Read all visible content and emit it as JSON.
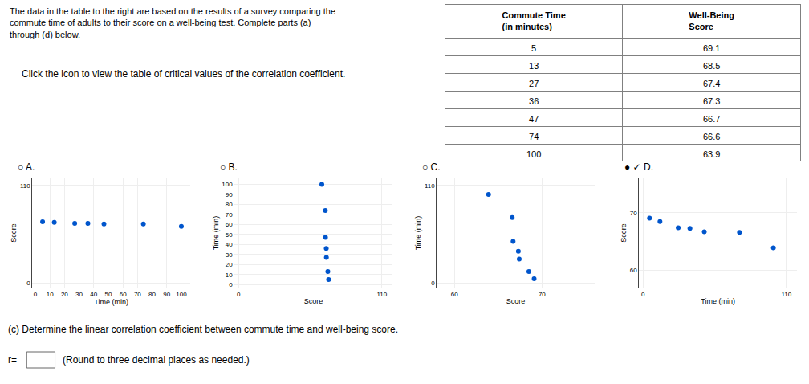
{
  "chart_data": [
    {
      "type": "table",
      "title": "The data in the table to the right are based on the results of a survey comparing the\ncommute time of adults to their score on a well-being test. Complete parts (a)\nthrough (d) below.",
      "series": [
        {
          "name": "Commute Time\n(in minutes)",
          "values": [
            5,
            13,
            27,
            36,
            47,
            74,
            100
          ]
        },
        {
          "name": "Well-Being\nScore",
          "values": [
            69.1,
            68.5,
            67.4,
            67.3,
            66.7,
            66.6,
            63.9
          ]
        }
      ],
      "annotations": [
        "Click the icon to view the table of critical values of the correlation coefficient.",
        "(c) Determine the linear correlation coefficient between commute time and well-being score.",
        "r=",
        "(Round to three decimal places as needed.)"
      ]
    },
    {
      "type": "scatter",
      "title": "○ A.",
      "x": [
        5,
        13,
        27,
        36,
        47,
        74,
        100
      ],
      "values": [
        69.1,
        68.5,
        67.4,
        67.3,
        66.7,
        66.6,
        63.9
      ],
      "xlabel": "Time (min)",
      "ylabel": "Score",
      "xlim": [
        -2,
        106
      ],
      "ylim": [
        -5,
        118
      ],
      "xticks": [
        0,
        10,
        20,
        30,
        40,
        50,
        60,
        70,
        80,
        90,
        100
      ],
      "yticks": [
        0,
        110
      ],
      "grid": true,
      "color": "#0055cc"
    },
    {
      "type": "scatter",
      "title": "○ B.",
      "x": [
        69.1,
        68.5,
        67.4,
        67.3,
        66.7,
        66.6,
        63.9
      ],
      "values": [
        5,
        13,
        27,
        36,
        47,
        74,
        100
      ],
      "xlabel": "Score",
      "ylabel": "Time (min)",
      "xlim": [
        -3,
        118
      ],
      "ylim": [
        -3,
        106
      ],
      "xticks": [
        0,
        110
      ],
      "yticks": [
        0,
        10,
        20,
        30,
        40,
        50,
        60,
        70,
        80,
        90,
        100
      ],
      "grid": true,
      "color": "#0055cc"
    },
    {
      "type": "scatter",
      "title": "○ C.",
      "x": [
        69.1,
        68.5,
        67.4,
        67.3,
        66.7,
        66.6,
        63.9
      ],
      "values": [
        5,
        13,
        27,
        36,
        47,
        74,
        100
      ],
      "xlabel": "Score",
      "ylabel": "Time (min)",
      "xlim": [
        58,
        76
      ],
      "ylim": [
        -5,
        118
      ],
      "xticks": [
        60,
        70
      ],
      "yticks": [
        0,
        110
      ],
      "grid": true,
      "color": "#0055cc"
    },
    {
      "type": "scatter",
      "title": "● ✓ D.",
      "x": [
        5,
        13,
        27,
        36,
        47,
        74,
        100
      ],
      "values": [
        69.1,
        68.5,
        67.4,
        67.3,
        66.7,
        66.6,
        63.9
      ],
      "xlabel": "Time (min)",
      "ylabel": "Score",
      "xlim": [
        -3,
        118
      ],
      "ylim": [
        57,
        76
      ],
      "xticks": [
        0,
        110
      ],
      "yticks": [
        60,
        70
      ],
      "grid": true,
      "color": "#0055cc"
    }
  ]
}
